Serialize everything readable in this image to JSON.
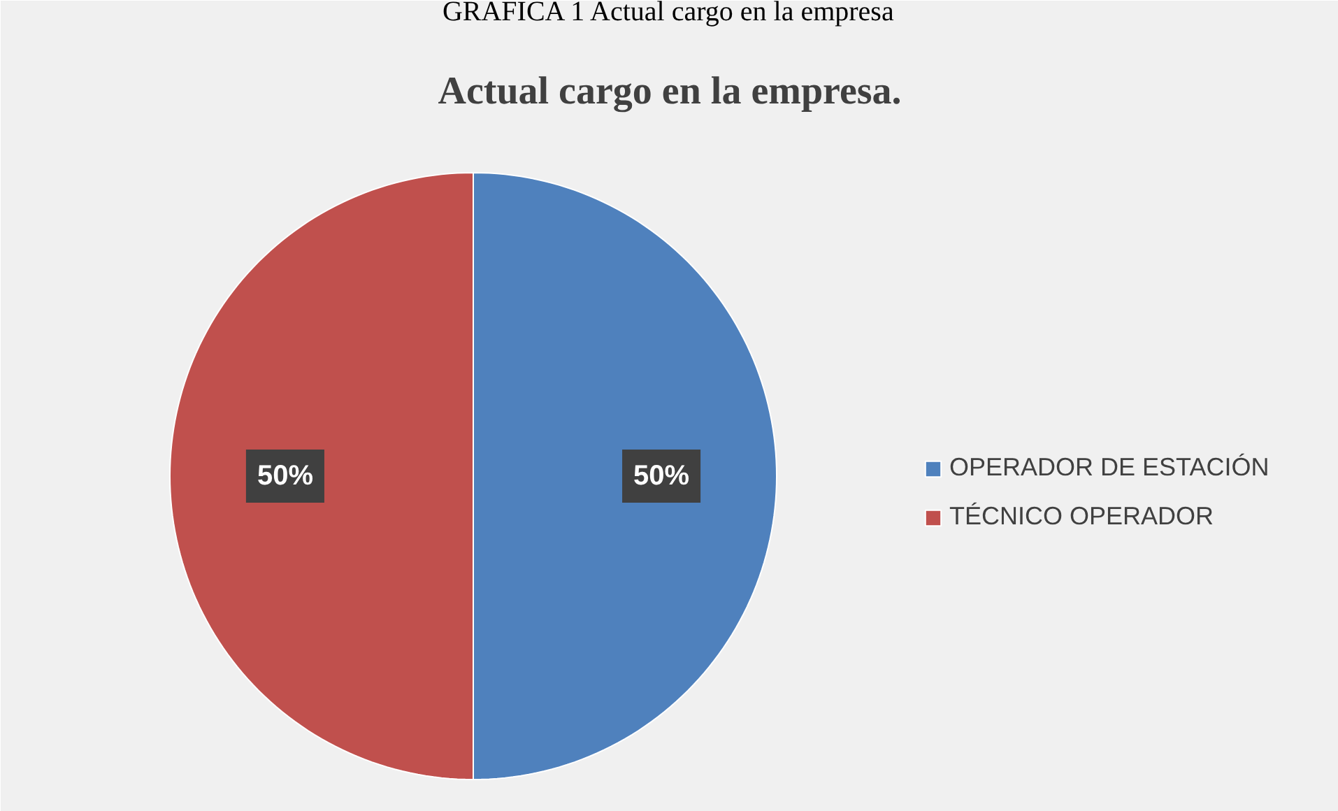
{
  "chart_data": {
    "type": "pie",
    "title": "Actual cargo en la empresa.",
    "annotations": [
      "GRAFICA 1 Actual cargo en la empresa"
    ],
    "categories": [
      "OPERADOR DE ESTACIÓN",
      "TÉCNICO OPERADOR"
    ],
    "values": [
      50,
      50
    ],
    "colors": [
      "#4f81bd",
      "#c0504d"
    ],
    "value_labels": [
      "50%",
      "50%"
    ],
    "legend": "right"
  }
}
